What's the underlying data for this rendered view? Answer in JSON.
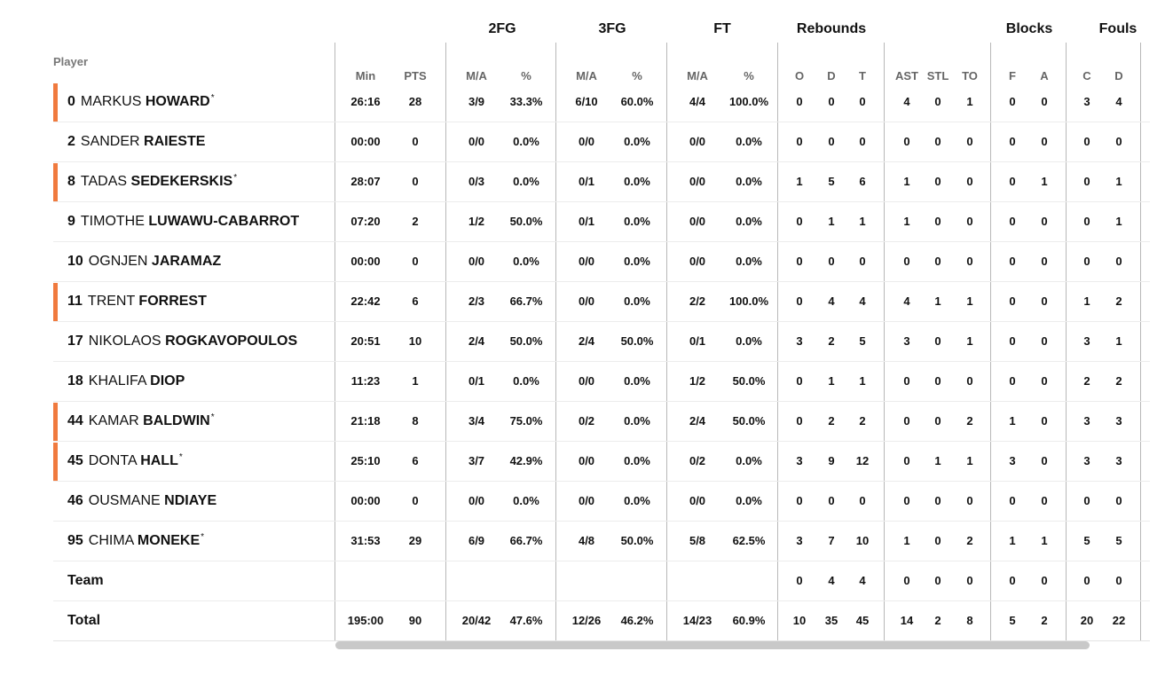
{
  "header": {
    "player_label": "Player",
    "groups": [
      "2FG",
      "3FG",
      "FT",
      "Rebounds",
      "Blocks",
      "Fouls"
    ],
    "columns": [
      "Min",
      "PTS",
      "M/A",
      "%",
      "M/A",
      "%",
      "M/A",
      "%",
      "O",
      "D",
      "T",
      "AST",
      "STL",
      "TO",
      "F",
      "A",
      "C",
      "D"
    ]
  },
  "rows": [
    {
      "num": "0",
      "first": "MARKUS",
      "last": "HOWARD",
      "star": "*",
      "starter": true,
      "stats": [
        "26:16",
        "28",
        "3/9",
        "33.3%",
        "6/10",
        "60.0%",
        "4/4",
        "100.0%",
        "0",
        "0",
        "0",
        "4",
        "0",
        "1",
        "0",
        "0",
        "3",
        "4"
      ]
    },
    {
      "num": "2",
      "first": "SANDER",
      "last": "RAIESTE",
      "star": "",
      "starter": false,
      "stats": [
        "00:00",
        "0",
        "0/0",
        "0.0%",
        "0/0",
        "0.0%",
        "0/0",
        "0.0%",
        "0",
        "0",
        "0",
        "0",
        "0",
        "0",
        "0",
        "0",
        "0",
        "0"
      ]
    },
    {
      "num": "8",
      "first": "TADAS",
      "last": "SEDEKERSKIS",
      "star": "*",
      "starter": true,
      "stats": [
        "28:07",
        "0",
        "0/3",
        "0.0%",
        "0/1",
        "0.0%",
        "0/0",
        "0.0%",
        "1",
        "5",
        "6",
        "1",
        "0",
        "0",
        "0",
        "1",
        "0",
        "1"
      ]
    },
    {
      "num": "9",
      "first": "TIMOTHE",
      "last": "LUWAWU-CABARROT",
      "star": "",
      "starter": false,
      "stats": [
        "07:20",
        "2",
        "1/2",
        "50.0%",
        "0/1",
        "0.0%",
        "0/0",
        "0.0%",
        "0",
        "1",
        "1",
        "1",
        "0",
        "0",
        "0",
        "0",
        "0",
        "1"
      ]
    },
    {
      "num": "10",
      "first": "OGNJEN",
      "last": "JARAMAZ",
      "star": "",
      "starter": false,
      "stats": [
        "00:00",
        "0",
        "0/0",
        "0.0%",
        "0/0",
        "0.0%",
        "0/0",
        "0.0%",
        "0",
        "0",
        "0",
        "0",
        "0",
        "0",
        "0",
        "0",
        "0",
        "0"
      ]
    },
    {
      "num": "11",
      "first": "TRENT",
      "last": "FORREST",
      "star": "",
      "starter": true,
      "stats": [
        "22:42",
        "6",
        "2/3",
        "66.7%",
        "0/0",
        "0.0%",
        "2/2",
        "100.0%",
        "0",
        "4",
        "4",
        "4",
        "1",
        "1",
        "0",
        "0",
        "1",
        "2"
      ]
    },
    {
      "num": "17",
      "first": "NIKOLAOS",
      "last": "ROGKAVOPOULOS",
      "star": "",
      "starter": false,
      "stats": [
        "20:51",
        "10",
        "2/4",
        "50.0%",
        "2/4",
        "50.0%",
        "0/1",
        "0.0%",
        "3",
        "2",
        "5",
        "3",
        "0",
        "1",
        "0",
        "0",
        "3",
        "1"
      ]
    },
    {
      "num": "18",
      "first": "KHALIFA",
      "last": "DIOP",
      "star": "",
      "starter": false,
      "stats": [
        "11:23",
        "1",
        "0/1",
        "0.0%",
        "0/0",
        "0.0%",
        "1/2",
        "50.0%",
        "0",
        "1",
        "1",
        "0",
        "0",
        "0",
        "0",
        "0",
        "2",
        "2"
      ]
    },
    {
      "num": "44",
      "first": "KAMAR",
      "last": "BALDWIN",
      "star": "*",
      "starter": true,
      "stats": [
        "21:18",
        "8",
        "3/4",
        "75.0%",
        "0/2",
        "0.0%",
        "2/4",
        "50.0%",
        "0",
        "2",
        "2",
        "0",
        "0",
        "2",
        "1",
        "0",
        "3",
        "3"
      ]
    },
    {
      "num": "45",
      "first": "DONTA",
      "last": "HALL",
      "star": "*",
      "starter": true,
      "stats": [
        "25:10",
        "6",
        "3/7",
        "42.9%",
        "0/0",
        "0.0%",
        "0/2",
        "0.0%",
        "3",
        "9",
        "12",
        "0",
        "1",
        "1",
        "3",
        "0",
        "3",
        "3"
      ]
    },
    {
      "num": "46",
      "first": "OUSMANE",
      "last": "NDIAYE",
      "star": "",
      "starter": false,
      "stats": [
        "00:00",
        "0",
        "0/0",
        "0.0%",
        "0/0",
        "0.0%",
        "0/0",
        "0.0%",
        "0",
        "0",
        "0",
        "0",
        "0",
        "0",
        "0",
        "0",
        "0",
        "0"
      ]
    },
    {
      "num": "95",
      "first": "CHIMA",
      "last": "MONEKE",
      "star": "*",
      "starter": false,
      "stats": [
        "31:53",
        "29",
        "6/9",
        "66.7%",
        "4/8",
        "50.0%",
        "5/8",
        "62.5%",
        "3",
        "7",
        "10",
        "1",
        "0",
        "2",
        "1",
        "1",
        "5",
        "5"
      ]
    }
  ],
  "team_row": {
    "label": "Team",
    "stats": [
      "",
      "",
      "",
      "",
      "",
      "",
      "",
      "",
      "0",
      "4",
      "4",
      "0",
      "0",
      "0",
      "0",
      "0",
      "0",
      "0"
    ]
  },
  "total_row": {
    "label": "Total",
    "stats": [
      "195:00",
      "90",
      "20/42",
      "47.6%",
      "12/26",
      "46.2%",
      "14/23",
      "60.9%",
      "10",
      "35",
      "45",
      "14",
      "2",
      "8",
      "5",
      "2",
      "20",
      "22"
    ]
  },
  "colors": {
    "starter_bar": "#f07a3e",
    "divider": "#b8b8b8",
    "scrollbar": "#c9c9c9"
  }
}
